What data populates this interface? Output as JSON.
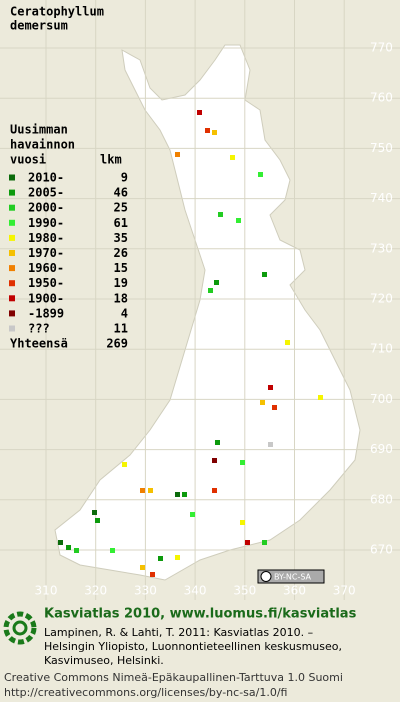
{
  "title": [
    "Ceratophyllum",
    "demersum"
  ],
  "legend": {
    "heading": [
      "Uusimman",
      "havainnon",
      "vuosi"
    ],
    "count_heading": "lkm",
    "rows": [
      {
        "label": "2010-",
        "count": 9,
        "color": "#0b6b0b"
      },
      {
        "label": "2005-",
        "count": 46,
        "color": "#0c9a0c"
      },
      {
        "label": "2000-",
        "count": 25,
        "color": "#22cc22"
      },
      {
        "label": "1990-",
        "count": 61,
        "color": "#33ee33"
      },
      {
        "label": "1980-",
        "count": 35,
        "color": "#f5f500"
      },
      {
        "label": "1970-",
        "count": 26,
        "color": "#f5c000"
      },
      {
        "label": "1960-",
        "count": 15,
        "color": "#f08000"
      },
      {
        "label": "1950-",
        "count": 19,
        "color": "#e03000"
      },
      {
        "label": "1900-",
        "count": 18,
        "color": "#c00000"
      },
      {
        "label": "-1899",
        "count": 4,
        "color": "#800000"
      },
      {
        "label": "???",
        "count": 11,
        "color": "#c8c8c8"
      }
    ],
    "total_label": "Yhteensä",
    "total": 269
  },
  "y_labels": [
    "770",
    "760",
    "750",
    "740",
    "730",
    "720",
    "710",
    "700",
    "690",
    "680",
    "670"
  ],
  "x_labels": [
    "310",
    "320",
    "330",
    "340",
    "350",
    "360",
    "370"
  ],
  "cc_badge": "BY-NC-SA",
  "footer": {
    "heading": "Kasviatlas 2010, www.luomus.fi/kasviatlas",
    "citation": [
      "Lampinen, R. & Lahti, T. 2011: Kasviatlas 2010. –",
      "Helsingin Yliopisto, Luonnontieteellinen keskusmuseo,",
      "Kasvimuseo, Helsinki."
    ],
    "license": [
      "Creative Commons Nimeä-Epäkaupallinen-Tarttuva 1.0 Suomi",
      "http://creativecommons.org/licenses/by-nc-sa/1.0/fi"
    ]
  }
}
